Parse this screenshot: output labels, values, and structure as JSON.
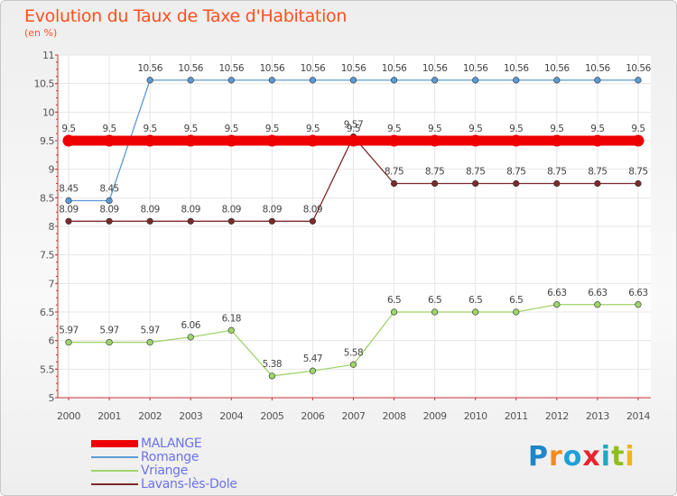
{
  "chart_data": {
    "type": "line",
    "title": "Evolution du Taux de Taxe d'Habitation",
    "subtitle": "(en %)",
    "x": [
      2000,
      2001,
      2002,
      2003,
      2004,
      2005,
      2006,
      2007,
      2008,
      2009,
      2010,
      2011,
      2012,
      2013,
      2014
    ],
    "ylim": [
      5,
      11
    ],
    "y_ticks": [
      "5",
      "5.5",
      "6",
      "6.5",
      "7",
      "7.5",
      "8",
      "8.5",
      "9",
      "9.5",
      "10",
      "10.5",
      "11"
    ],
    "grid": true,
    "legend_position": "bottom-left",
    "series": [
      {
        "name": "MALANGE",
        "color": "#ee0000",
        "values": [
          9.5,
          9.5,
          9.5,
          9.5,
          9.5,
          9.5,
          9.5,
          9.5,
          9.5,
          9.5,
          9.5,
          9.5,
          9.5,
          9.5,
          9.5
        ],
        "labels": [
          "9.5",
          "9.5",
          "9.5",
          "9.5",
          "9.5",
          "9.5",
          "9.5",
          "9.5",
          "9.5",
          "9.5",
          "9.5",
          "9.5",
          "9.5",
          "9.5",
          "9.5"
        ]
      },
      {
        "name": "Romange",
        "color": "#5b9bd5",
        "values": [
          8.45,
          8.45,
          10.56,
          10.56,
          10.56,
          10.56,
          10.56,
          10.56,
          10.56,
          10.56,
          10.56,
          10.56,
          10.56,
          10.56,
          10.56
        ],
        "labels": [
          "8.45",
          "8.45",
          "10.56",
          "10.56",
          "10.56",
          "10.56",
          "10.56",
          "10.56",
          "10.56",
          "10.56",
          "10.56",
          "10.56",
          "10.56",
          "10.56",
          "10.56"
        ]
      },
      {
        "name": "Vriange",
        "color": "#9fd46a",
        "values": [
          5.97,
          5.97,
          5.97,
          6.06,
          6.18,
          5.38,
          5.47,
          5.58,
          6.5,
          6.5,
          6.5,
          6.5,
          6.63,
          6.63,
          6.63
        ],
        "labels": [
          "5.97",
          "5.97",
          "5.97",
          "6.06",
          "6.18",
          "5.38",
          "5.47",
          "5.58",
          "6.5",
          "6.5",
          "6.5",
          "6.5",
          "6.63",
          "6.63",
          "6.63"
        ]
      },
      {
        "name": "Lavans-lès-Dole",
        "color": "#7b2b2b",
        "values": [
          8.09,
          8.09,
          8.09,
          8.09,
          8.09,
          8.09,
          8.09,
          9.57,
          8.75,
          8.75,
          8.75,
          8.75,
          8.75,
          8.75,
          8.75
        ],
        "labels": [
          "8.09",
          "8.09",
          "8.09",
          "8.09",
          "8.09",
          "8.09",
          "8.09",
          "9.57",
          "8.75",
          "8.75",
          "8.75",
          "8.75",
          "8.75",
          "8.75",
          "8.75"
        ]
      }
    ]
  },
  "logo": {
    "letters": [
      "P",
      "r",
      "o",
      "x",
      "i",
      "t",
      "i"
    ]
  }
}
